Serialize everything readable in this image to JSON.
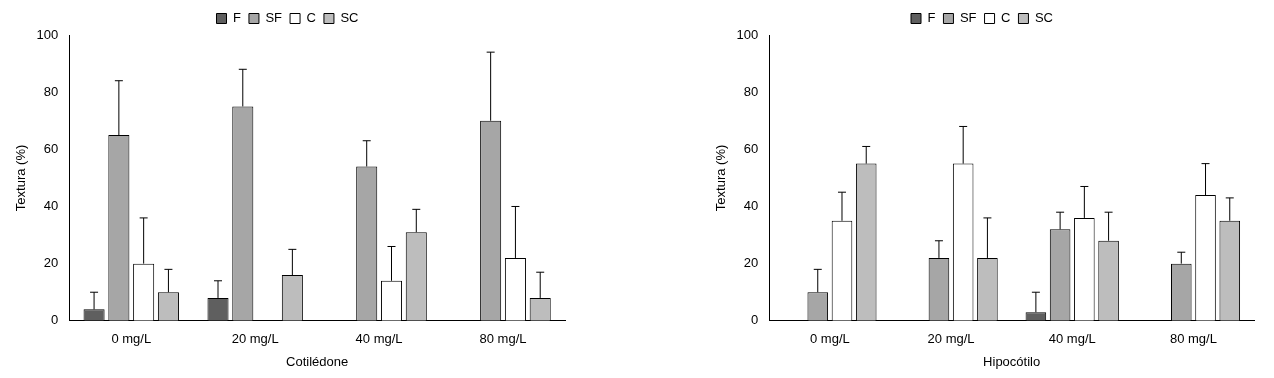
{
  "chart_data": [
    {
      "type": "bar",
      "x_label": "Cotilédone",
      "y_label": "Textura (%)",
      "categories": [
        "0 mg/L",
        "20 mg/L",
        "40 mg/L",
        "80 mg/L"
      ],
      "series": [
        {
          "name": "F",
          "color": "#5f5f5f",
          "values": [
            4,
            8,
            0,
            0
          ],
          "errors": [
            6,
            6,
            0,
            0
          ]
        },
        {
          "name": "SF",
          "color": "#a6a6a6",
          "values": [
            65,
            75,
            54,
            70
          ],
          "errors": [
            19,
            13,
            9,
            24
          ]
        },
        {
          "name": "C",
          "color": "#ffffff",
          "values": [
            20,
            0,
            14,
            22
          ],
          "errors": [
            16,
            0,
            12,
            18
          ]
        },
        {
          "name": "SC",
          "color": "#bdbdbd",
          "values": [
            10,
            16,
            31,
            8
          ],
          "errors": [
            8,
            9,
            8,
            9
          ]
        }
      ],
      "ylim": [
        0,
        100
      ],
      "yticks": [
        0,
        20,
        40,
        60,
        80,
        100
      ],
      "grid": false,
      "legend": "top"
    },
    {
      "type": "bar",
      "x_label": "Hipocótilo",
      "y_label": "Textura (%)",
      "categories": [
        "0 mg/L",
        "20 mg/L",
        "40 mg/L",
        "80 mg/L"
      ],
      "series": [
        {
          "name": "F",
          "color": "#5f5f5f",
          "values": [
            0,
            0,
            3,
            0
          ],
          "errors": [
            0,
            0,
            7,
            0
          ]
        },
        {
          "name": "SF",
          "color": "#a6a6a6",
          "values": [
            10,
            22,
            32,
            20
          ],
          "errors": [
            8,
            6,
            6,
            4
          ]
        },
        {
          "name": "C",
          "color": "#ffffff",
          "values": [
            35,
            55,
            36,
            44
          ],
          "errors": [
            10,
            13,
            11,
            11
          ]
        },
        {
          "name": "SC",
          "color": "#bdbdbd",
          "values": [
            55,
            22,
            28,
            35
          ],
          "errors": [
            6,
            14,
            10,
            8
          ]
        }
      ],
      "ylim": [
        0,
        100
      ],
      "yticks": [
        0,
        20,
        40,
        60,
        80,
        100
      ],
      "grid": false,
      "legend": "top"
    }
  ]
}
